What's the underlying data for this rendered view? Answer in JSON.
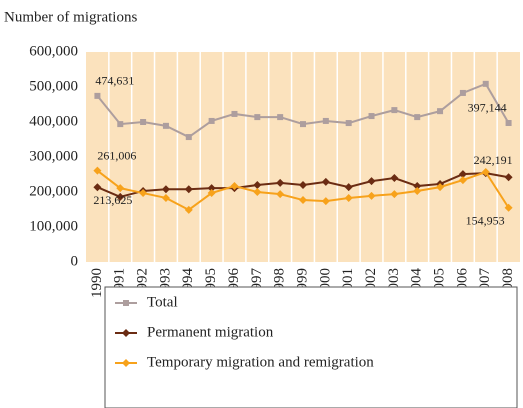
{
  "chart_data": {
    "type": "line",
    "y_axis_title": "Number of migrations",
    "categories": [
      "1990",
      "1991",
      "1992",
      "1993",
      "1994",
      "1995",
      "1996",
      "1997",
      "1998",
      "1999",
      "2000",
      "2001",
      "2002",
      "2003",
      "2004",
      "2005",
      "2006",
      "2007",
      "2008"
    ],
    "series": [
      {
        "name": "Total",
        "color": "#ad9e9e",
        "marker": "square",
        "values": [
          474631,
          394000,
          400000,
          389000,
          357000,
          403000,
          423000,
          414000,
          414000,
          394000,
          403000,
          397000,
          417000,
          434000,
          414000,
          431000,
          483000,
          509000,
          397144
        ],
        "value_labels": [
          "474,631",
          null,
          null,
          null,
          null,
          null,
          null,
          null,
          null,
          null,
          null,
          null,
          null,
          null,
          null,
          null,
          null,
          null,
          "397,144"
        ]
      },
      {
        "name": "Permanent migration",
        "color": "#6b2c13",
        "marker": "diamond",
        "values": [
          213625,
          186000,
          203000,
          208000,
          208000,
          211000,
          211000,
          220000,
          226000,
          220000,
          229000,
          214000,
          231000,
          240000,
          217000,
          223000,
          251000,
          254000,
          242191
        ],
        "value_labels": [
          "213,625",
          null,
          null,
          null,
          null,
          null,
          null,
          null,
          null,
          null,
          null,
          null,
          null,
          null,
          null,
          null,
          null,
          null,
          "242,191"
        ]
      },
      {
        "name": "Temporary migration and remigration",
        "color": "#f7a21b",
        "marker": "diamond",
        "values": [
          261006,
          211000,
          197000,
          183000,
          149000,
          197000,
          217000,
          200000,
          194000,
          177000,
          174000,
          183000,
          189000,
          194000,
          203000,
          214000,
          234000,
          257000,
          154953
        ],
        "value_labels": [
          "261,006",
          null,
          null,
          null,
          null,
          null,
          null,
          null,
          null,
          null,
          null,
          null,
          null,
          null,
          null,
          null,
          null,
          null,
          "154,953"
        ]
      }
    ],
    "ylim": [
      0,
      600000
    ],
    "yticks": [
      0,
      {
        "value": 100000,
        "label": "100,000"
      },
      {
        "value": 200000,
        "label": "200,000"
      },
      {
        "value": 300000,
        "label": "300,000"
      },
      {
        "value": 400000,
        "label": "400,000"
      },
      {
        "value": 500000,
        "label": "500,000"
      },
      {
        "value": 600000,
        "label": "600,000"
      }
    ],
    "plot_background": "#fbe2bd",
    "grid": true,
    "legend_position": "bottom"
  }
}
